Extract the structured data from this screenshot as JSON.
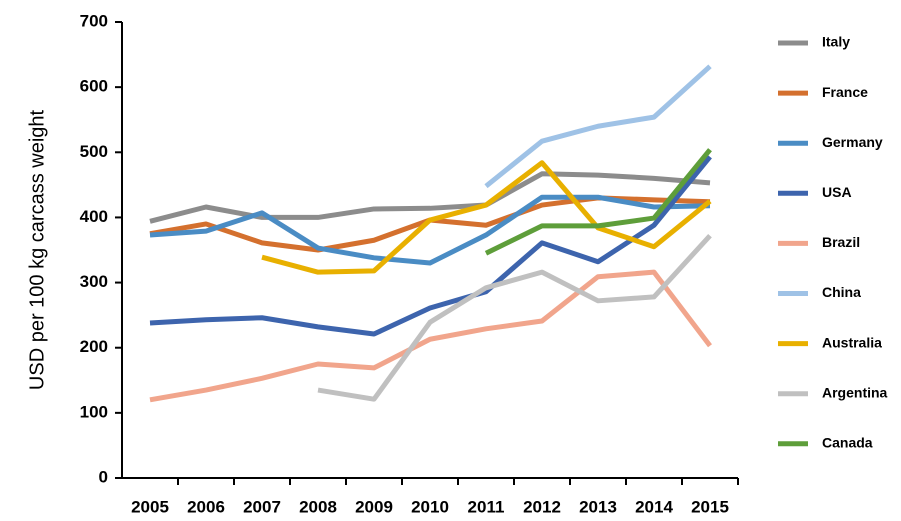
{
  "chart_data": {
    "type": "line",
    "y_label": "USD per 100 kg carcass weight",
    "categories": [
      "2005",
      "2006",
      "2007",
      "2008",
      "2009",
      "2010",
      "2011",
      "2012",
      "2013",
      "2014",
      "2015"
    ],
    "ylim": [
      0,
      700
    ],
    "yticks": [
      0,
      100,
      200,
      300,
      400,
      500,
      600,
      700
    ],
    "grid": false,
    "legend": "right",
    "series": [
      {
        "name": "Italy",
        "color": "#8c8c8c",
        "values": [
          394,
          416,
          400,
          400,
          413,
          414,
          419,
          467,
          465,
          460,
          453
        ]
      },
      {
        "name": "France",
        "color": "#d4702e",
        "values": [
          375,
          390,
          361,
          350,
          365,
          396,
          388,
          419,
          430,
          427,
          424
        ]
      },
      {
        "name": "Germany",
        "color": "#4a8cc4",
        "values": [
          373,
          379,
          407,
          353,
          338,
          330,
          373,
          431,
          431,
          416,
          418
        ]
      },
      {
        "name": "USA",
        "color": "#3d64ad",
        "values": [
          238,
          243,
          246,
          232,
          221,
          261,
          286,
          361,
          332,
          388,
          493
        ]
      },
      {
        "name": "Brazil",
        "color": "#f1a58c",
        "values": [
          120,
          135,
          153,
          175,
          169,
          213,
          229,
          241,
          309,
          316,
          203
        ]
      },
      {
        "name": "China",
        "color": "#9fc2e6",
        "values": [
          null,
          null,
          null,
          null,
          null,
          null,
          448,
          517,
          540,
          554,
          632
        ]
      },
      {
        "name": "Australia",
        "color": "#e8b000",
        "values": [
          null,
          null,
          339,
          316,
          318,
          396,
          419,
          484,
          384,
          355,
          425
        ]
      },
      {
        "name": "Argentina",
        "color": "#c0c0c0",
        "values": [
          null,
          null,
          null,
          135,
          121,
          239,
          292,
          316,
          272,
          278,
          372
        ]
      },
      {
        "name": "Canada",
        "color": "#5e9e3a",
        "values": [
          null,
          null,
          null,
          null,
          null,
          null,
          345,
          387,
          387,
          399,
          504
        ]
      }
    ]
  }
}
